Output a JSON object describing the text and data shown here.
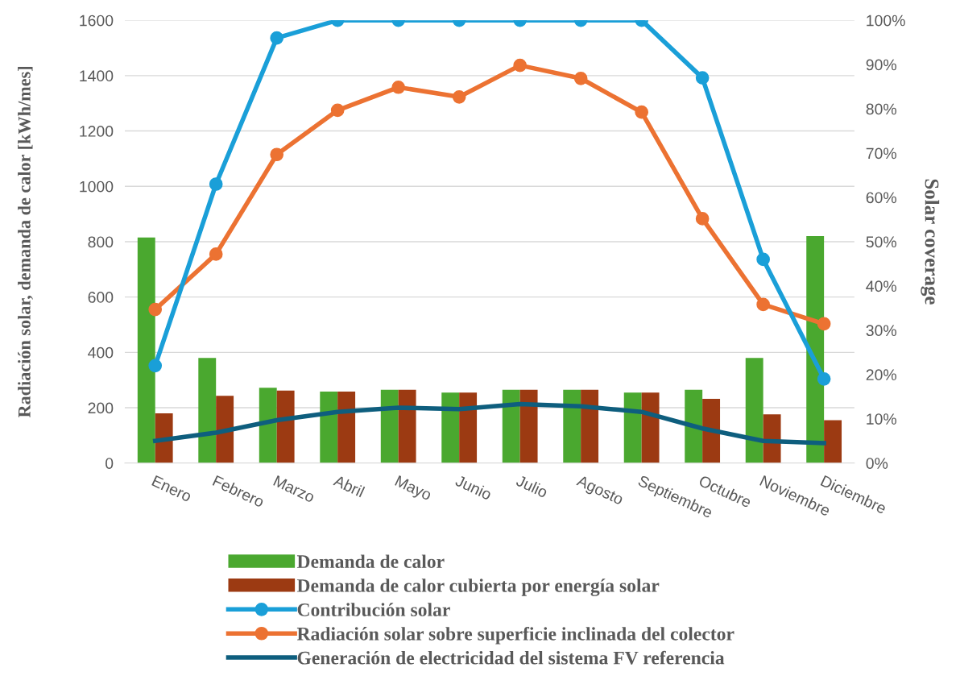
{
  "chart_data": {
    "type": "bar",
    "ylabel": "Radiación solar, demanda de calor [kWh/mes]",
    "y2label": "Solar coverage",
    "categories": [
      "Enero",
      "Febrero",
      "Marzo",
      "Abril",
      "Mayo",
      "Junio",
      "Julio",
      "Agosto",
      "Septiembre",
      "Octubre",
      "Noviembre",
      "Diciembre"
    ],
    "series": [
      {
        "name": "Demanda de calor",
        "color": "#4aa82f",
        "values": [
          815,
          380,
          272,
          258,
          265,
          255,
          265,
          265,
          255,
          265,
          380,
          820
        ]
      },
      {
        "name": "Demanda de calor cubierta por energía solar",
        "color": "#9c3a12",
        "values": [
          180,
          243,
          262,
          258,
          265,
          255,
          265,
          265,
          255,
          232,
          176,
          155
        ]
      },
      {
        "name": "Contribución solar",
        "type": "line",
        "axis": "y2",
        "marker": "circle",
        "color": "#1a9fd8",
        "values": [
          22,
          63,
          96,
          100,
          100,
          100,
          100,
          100,
          100,
          87,
          46,
          19
        ]
      },
      {
        "name": "Radiación solar sobre superficie inclinada del colector",
        "type": "line",
        "marker": "circle",
        "color": "#ec7232",
        "values": [
          555,
          755,
          1115,
          1275,
          1358,
          1323,
          1437,
          1390,
          1268,
          883,
          573,
          503
        ]
      },
      {
        "name": "Generación de electricidad del sistema FV referencia",
        "type": "line",
        "marker": "none",
        "color": "#0e5e7e",
        "values": [
          80,
          110,
          155,
          185,
          200,
          195,
          213,
          205,
          185,
          125,
          80,
          72
        ]
      }
    ],
    "ylim": [
      0,
      1600
    ],
    "yticks": [
      0,
      200,
      400,
      600,
      800,
      1000,
      1200,
      1400,
      1600
    ],
    "y2lim": [
      0,
      100
    ],
    "y2ticks": [
      {
        "value": 0,
        "label": "0%"
      },
      {
        "value": 10,
        "label": "10%"
      },
      {
        "value": 20,
        "label": "20%"
      },
      {
        "value": 30,
        "label": "30%"
      },
      {
        "value": 40,
        "label": "40%"
      },
      {
        "value": 50,
        "label": "50%"
      },
      {
        "value": 60,
        "label": "60%"
      },
      {
        "value": 70,
        "label": "70%"
      },
      {
        "value": 80,
        "label": "80%"
      },
      {
        "value": 90,
        "label": "90%"
      },
      {
        "value": 100,
        "label": "100%"
      }
    ],
    "grid": "y",
    "legend": "bottom",
    "line_style": "solid"
  }
}
